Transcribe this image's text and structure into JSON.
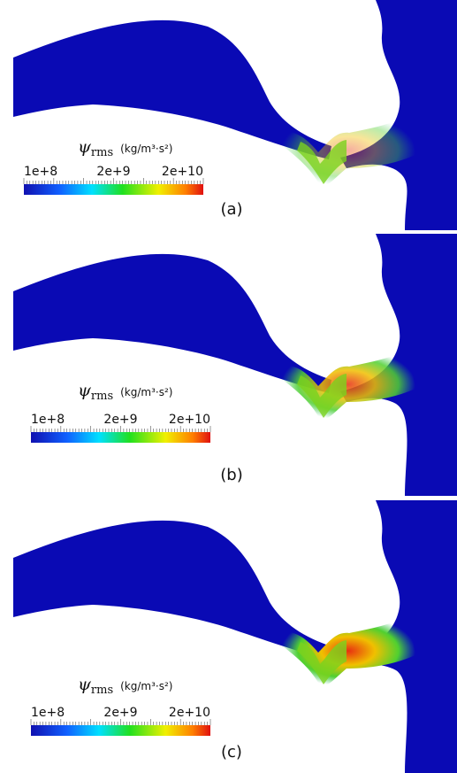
{
  "panels": [
    {
      "label": "(a)",
      "colorbar": {
        "symbol": "ψ",
        "subscript": "rms",
        "unit": "(kg/m³·s²)",
        "ticks": [
          "1e+8",
          "2e+9",
          "2e+10"
        ]
      }
    },
    {
      "label": "(b)",
      "colorbar": {
        "symbol": "ψ",
        "subscript": "rms",
        "unit": "(kg/m³·s²)",
        "ticks": [
          "1e+8",
          "2e+9",
          "2e+10"
        ]
      }
    },
    {
      "label": "(c)",
      "colorbar": {
        "symbol": "ψ",
        "subscript": "rms",
        "unit": "(kg/m³·s²)",
        "ticks": [
          "1e+8",
          "2e+9",
          "2e+10"
        ]
      }
    }
  ]
}
